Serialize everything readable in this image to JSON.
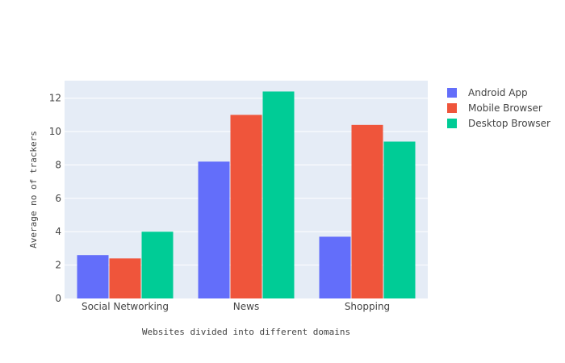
{
  "chart_data": {
    "type": "bar",
    "title": "",
    "xlabel": "Websites divided into different domains",
    "ylabel": "Average no of trackers",
    "categories": [
      "Social Networking",
      "News",
      "Shopping"
    ],
    "series": [
      {
        "name": "Android App",
        "color": "#636efa",
        "values": [
          2.6,
          8.2,
          3.7
        ]
      },
      {
        "name": "Mobile Browser",
        "color": "#ef553b",
        "values": [
          2.4,
          11.0,
          10.4
        ]
      },
      {
        "name": "Desktop Browser",
        "color": "#00cc96",
        "values": [
          4.0,
          12.4,
          9.4
        ]
      }
    ],
    "ylim": [
      0,
      13.05
    ],
    "yticks": [
      "0",
      "2",
      "4",
      "6",
      "8",
      "10",
      "12"
    ],
    "grid": true,
    "legend_position": "top-right",
    "plot_background": "#e5ecf6"
  }
}
